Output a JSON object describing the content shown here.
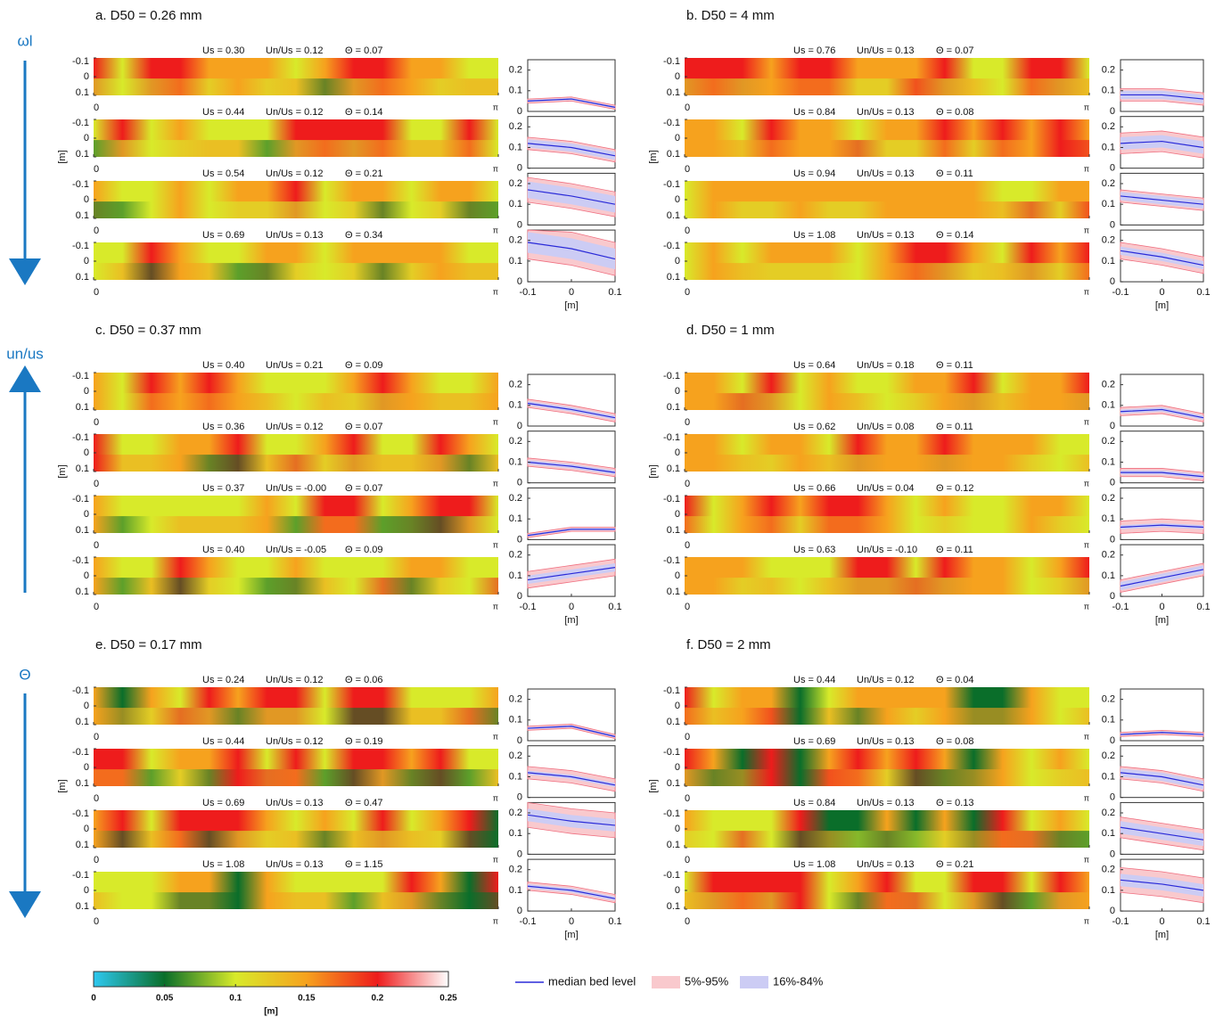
{
  "chart_data": {
    "type": "bed-level-panels",
    "axis_labels": [
      "ωl",
      "un/us",
      "Θ"
    ],
    "heatmap_axes": {
      "ylim": [
        -0.1,
        0.1
      ],
      "yticks": [
        -0.1,
        0,
        0.1
      ],
      "xlim": [
        0,
        3.1416
      ],
      "xticks": [
        0,
        {
          "value": 3.1416,
          "label": "π"
        }
      ],
      "ylabel": "[m]"
    },
    "profile_axes": {
      "x": [
        -0.1,
        0,
        0.1
      ],
      "xlim": [
        -0.1,
        0.1
      ],
      "xticks": [
        -0.1,
        0,
        0.1
      ],
      "ylim": [
        0,
        0.25
      ],
      "yticks": [
        0,
        0.1,
        0.2
      ],
      "xlabel": "[m]"
    },
    "legend": [
      {
        "name": "median bed level",
        "color": "#2a2ad8"
      },
      {
        "name": "5%-95%",
        "color": "#f9c9cd"
      },
      {
        "name": "16%-84%",
        "color": "#ccccf4"
      }
    ],
    "colorbar": {
      "ticks": [
        0,
        0.05,
        0.1,
        0.15,
        0.2,
        0.25
      ],
      "colors": [
        "#2ec8f0",
        "#0a6e2a",
        "#d8ea2a",
        "#f6a21e",
        "#ee1c1c",
        "#ffffff"
      ],
      "label": "[m]"
    },
    "panels": [
      {
        "title": "a. D50 = 0.26 mm",
        "rows": [
          {
            "texts": [
              "Us = 0.30",
              "Un/Us = 0.12",
              "Θ = 0.07"
            ],
            "median": [
              0.05,
              0.06,
              0.02
            ],
            "p16": [
              0.045,
              0.055,
              0.015
            ],
            "p84": [
              0.055,
              0.065,
              0.025
            ],
            "p5": [
              0.04,
              0.05,
              0.01
            ],
            "p95": [
              0.06,
              0.07,
              0.03
            ]
          },
          {
            "texts": [
              "Us = 0.44",
              "Un/Us = 0.12",
              "Θ = 0.14"
            ],
            "median": [
              0.12,
              0.1,
              0.06
            ],
            "p16": [
              0.1,
              0.08,
              0.04
            ],
            "p84": [
              0.14,
              0.12,
              0.08
            ],
            "p5": [
              0.09,
              0.07,
              0.03
            ],
            "p95": [
              0.15,
              0.13,
              0.09
            ]
          },
          {
            "texts": [
              "Us = 0.54",
              "Un/Us = 0.12",
              "Θ = 0.21"
            ],
            "median": [
              0.17,
              0.14,
              0.1
            ],
            "p16": [
              0.13,
              0.1,
              0.06
            ],
            "p84": [
              0.21,
              0.18,
              0.14
            ],
            "p5": [
              0.11,
              0.08,
              0.04
            ],
            "p95": [
              0.23,
              0.2,
              0.16
            ]
          },
          {
            "texts": [
              "Us = 0.69",
              "Un/Us = 0.13",
              "Θ = 0.34"
            ],
            "median": [
              0.19,
              0.16,
              0.11
            ],
            "p16": [
              0.14,
              0.11,
              0.06
            ],
            "p84": [
              0.24,
              0.21,
              0.16
            ],
            "p5": [
              0.11,
              0.08,
              0.03
            ],
            "p95": [
              0.25,
              0.24,
              0.19
            ]
          }
        ]
      },
      {
        "title": "b. D50 = 4 mm",
        "rows": [
          {
            "texts": [
              "Us = 0.76",
              "Un/Us = 0.13",
              "Θ = 0.07"
            ],
            "median": [
              0.08,
              0.08,
              0.06
            ],
            "p16": [
              0.06,
              0.06,
              0.04
            ],
            "p84": [
              0.1,
              0.1,
              0.08
            ],
            "p5": [
              0.05,
              0.05,
              0.03
            ],
            "p95": [
              0.11,
              0.11,
              0.09
            ]
          },
          {
            "texts": [
              "Us = 0.84",
              "Un/Us = 0.13",
              "Θ = 0.08"
            ],
            "median": [
              0.12,
              0.13,
              0.1
            ],
            "p16": [
              0.09,
              0.1,
              0.07
            ],
            "p84": [
              0.15,
              0.16,
              0.13
            ],
            "p5": [
              0.07,
              0.08,
              0.05
            ],
            "p95": [
              0.17,
              0.18,
              0.15
            ]
          },
          {
            "texts": [
              "Us = 0.94",
              "Un/Us = 0.13",
              "Θ = 0.11"
            ],
            "median": [
              0.14,
              0.12,
              0.1
            ],
            "p16": [
              0.12,
              0.1,
              0.08
            ],
            "p84": [
              0.16,
              0.14,
              0.12
            ],
            "p5": [
              0.11,
              0.09,
              0.07
            ],
            "p95": [
              0.17,
              0.15,
              0.13
            ]
          },
          {
            "texts": [
              "Us = 1.08",
              "Un/Us = 0.13",
              "Θ = 0.14"
            ],
            "median": [
              0.15,
              0.12,
              0.08
            ],
            "p16": [
              0.13,
              0.1,
              0.06
            ],
            "p84": [
              0.17,
              0.14,
              0.1
            ],
            "p5": [
              0.11,
              0.08,
              0.04
            ],
            "p95": [
              0.19,
              0.16,
              0.12
            ]
          }
        ]
      },
      {
        "title": "c. D50 = 0.37 mm",
        "rows": [
          {
            "texts": [
              "Us = 0.40",
              "Un/Us = 0.21",
              "Θ = 0.09"
            ],
            "median": [
              0.11,
              0.08,
              0.04
            ],
            "p16": [
              0.1,
              0.07,
              0.03
            ],
            "p84": [
              0.12,
              0.09,
              0.05
            ],
            "p5": [
              0.09,
              0.06,
              0.02
            ],
            "p95": [
              0.13,
              0.1,
              0.06
            ]
          },
          {
            "texts": [
              "Us = 0.36",
              "Un/Us = 0.12",
              "Θ = 0.07"
            ],
            "median": [
              0.1,
              0.08,
              0.05
            ],
            "p16": [
              0.09,
              0.07,
              0.04
            ],
            "p84": [
              0.11,
              0.09,
              0.06
            ],
            "p5": [
              0.08,
              0.06,
              0.03
            ],
            "p95": [
              0.12,
              0.1,
              0.07
            ]
          },
          {
            "texts": [
              "Us = 0.37",
              "Un/Us = -0.00",
              "Θ = 0.07"
            ],
            "median": [
              0.02,
              0.05,
              0.05
            ],
            "p16": [
              0.015,
              0.045,
              0.045
            ],
            "p84": [
              0.025,
              0.055,
              0.055
            ],
            "p5": [
              0.01,
              0.04,
              0.04
            ],
            "p95": [
              0.03,
              0.06,
              0.06
            ]
          },
          {
            "texts": [
              "Us = 0.40",
              "Un/Us = -0.05",
              "Θ = 0.09"
            ],
            "median": [
              0.08,
              0.11,
              0.14
            ],
            "p16": [
              0.06,
              0.09,
              0.12
            ],
            "p84": [
              0.1,
              0.13,
              0.16
            ],
            "p5": [
              0.04,
              0.07,
              0.1
            ],
            "p95": [
              0.12,
              0.15,
              0.18
            ]
          }
        ]
      },
      {
        "title": "d. D50 = 1 mm",
        "rows": [
          {
            "texts": [
              "Us = 0.64",
              "Un/Us = 0.18",
              "Θ = 0.11"
            ],
            "median": [
              0.07,
              0.08,
              0.04
            ],
            "p16": [
              0.06,
              0.07,
              0.03
            ],
            "p84": [
              0.08,
              0.09,
              0.05
            ],
            "p5": [
              0.05,
              0.06,
              0.02
            ],
            "p95": [
              0.09,
              0.1,
              0.06
            ]
          },
          {
            "texts": [
              "Us = 0.62",
              "Un/Us = 0.08",
              "Θ = 0.11"
            ],
            "median": [
              0.05,
              0.05,
              0.03
            ],
            "p16": [
              0.04,
              0.04,
              0.02
            ],
            "p84": [
              0.06,
              0.06,
              0.04
            ],
            "p5": [
              0.03,
              0.03,
              0.01
            ],
            "p95": [
              0.07,
              0.07,
              0.05
            ]
          },
          {
            "texts": [
              "Us = 0.66",
              "Un/Us = 0.04",
              "Θ = 0.12"
            ],
            "median": [
              0.06,
              0.07,
              0.06
            ],
            "p16": [
              0.05,
              0.06,
              0.05
            ],
            "p84": [
              0.07,
              0.08,
              0.07
            ],
            "p5": [
              0.03,
              0.04,
              0.03
            ],
            "p95": [
              0.09,
              0.1,
              0.09
            ]
          },
          {
            "texts": [
              "Us = 0.63",
              "Un/Us = -0.10",
              "Θ = 0.11"
            ],
            "median": [
              0.05,
              0.09,
              0.13
            ],
            "p16": [
              0.03,
              0.07,
              0.11
            ],
            "p84": [
              0.07,
              0.11,
              0.15
            ],
            "p5": [
              0.02,
              0.06,
              0.1
            ],
            "p95": [
              0.08,
              0.12,
              0.16
            ]
          }
        ]
      },
      {
        "title": "e. D50 = 0.17 mm",
        "rows": [
          {
            "texts": [
              "Us = 0.24",
              "Un/Us = 0.12",
              "Θ = 0.06"
            ],
            "median": [
              0.06,
              0.07,
              0.02
            ],
            "p16": [
              0.055,
              0.065,
              0.015
            ],
            "p84": [
              0.065,
              0.075,
              0.025
            ],
            "p5": [
              0.05,
              0.06,
              0.01
            ],
            "p95": [
              0.07,
              0.08,
              0.03
            ]
          },
          {
            "texts": [
              "Us = 0.44",
              "Un/Us = 0.12",
              "Θ = 0.19"
            ],
            "median": [
              0.12,
              0.1,
              0.06
            ],
            "p16": [
              0.11,
              0.09,
              0.05
            ],
            "p84": [
              0.13,
              0.11,
              0.07
            ],
            "p5": [
              0.09,
              0.07,
              0.03
            ],
            "p95": [
              0.15,
              0.13,
              0.09
            ]
          },
          {
            "texts": [
              "Us = 0.69",
              "Un/Us = 0.13",
              "Θ = 0.47"
            ],
            "median": [
              0.19,
              0.16,
              0.14
            ],
            "p16": [
              0.16,
              0.13,
              0.11
            ],
            "p84": [
              0.22,
              0.19,
              0.17
            ],
            "p5": [
              0.13,
              0.1,
              0.08
            ],
            "p95": [
              0.25,
              0.22,
              0.2
            ]
          },
          {
            "texts": [
              "Us = 1.08",
              "Un/Us = 0.13",
              "Θ = 1.15"
            ],
            "median": [
              0.12,
              0.1,
              0.06
            ],
            "p16": [
              0.11,
              0.09,
              0.05
            ],
            "p84": [
              0.13,
              0.11,
              0.07
            ],
            "p5": [
              0.1,
              0.08,
              0.04
            ],
            "p95": [
              0.14,
              0.12,
              0.08
            ]
          }
        ]
      },
      {
        "title": "f. D50 = 2 mm",
        "rows": [
          {
            "texts": [
              "Us = 0.44",
              "Un/Us = 0.12",
              "Θ = 0.04"
            ],
            "median": [
              0.03,
              0.04,
              0.03
            ],
            "p16": [
              0.025,
              0.035,
              0.025
            ],
            "p84": [
              0.035,
              0.045,
              0.035
            ],
            "p5": [
              0.02,
              0.03,
              0.02
            ],
            "p95": [
              0.04,
              0.05,
              0.04
            ]
          },
          {
            "texts": [
              "Us = 0.69",
              "Un/Us = 0.13",
              "Θ = 0.08"
            ],
            "median": [
              0.12,
              0.1,
              0.06
            ],
            "p16": [
              0.1,
              0.08,
              0.04
            ],
            "p84": [
              0.14,
              0.12,
              0.08
            ],
            "p5": [
              0.09,
              0.07,
              0.03
            ],
            "p95": [
              0.15,
              0.13,
              0.09
            ]
          },
          {
            "texts": [
              "Us = 0.84",
              "Un/Us = 0.13",
              "Θ = 0.13"
            ],
            "median": [
              0.13,
              0.1,
              0.07
            ],
            "p16": [
              0.1,
              0.07,
              0.04
            ],
            "p84": [
              0.16,
              0.13,
              0.1
            ],
            "p5": [
              0.08,
              0.05,
              0.02
            ],
            "p95": [
              0.18,
              0.15,
              0.12
            ]
          },
          {
            "texts": [
              "Us = 1.08",
              "Un/Us = 0.13",
              "Θ = 0.21"
            ],
            "median": [
              0.15,
              0.13,
              0.1
            ],
            "p16": [
              0.12,
              0.1,
              0.07
            ],
            "p84": [
              0.18,
              0.16,
              0.13
            ],
            "p5": [
              0.09,
              0.07,
              0.04
            ],
            "p95": [
              0.21,
              0.19,
              0.16
            ]
          }
        ]
      }
    ]
  }
}
